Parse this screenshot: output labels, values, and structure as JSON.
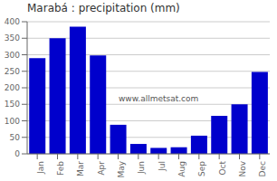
{
  "chart_data": {
    "type": "bar",
    "title": "Marabá : precipitation (mm)",
    "categories": [
      "Jan",
      "Feb",
      "Mar",
      "Apr",
      "May",
      "Jun",
      "Jul",
      "Aug",
      "Sep",
      "Oct",
      "Nov",
      "Dec"
    ],
    "values": [
      290,
      350,
      385,
      298,
      88,
      30,
      18,
      20,
      55,
      115,
      150,
      248
    ],
    "color": "#0000cc",
    "ylim": [
      0,
      400
    ],
    "yticks": [
      0,
      50,
      100,
      150,
      200,
      250,
      300,
      350,
      400
    ],
    "grid": true,
    "annotations": [
      "www.allmetsat.com"
    ]
  }
}
